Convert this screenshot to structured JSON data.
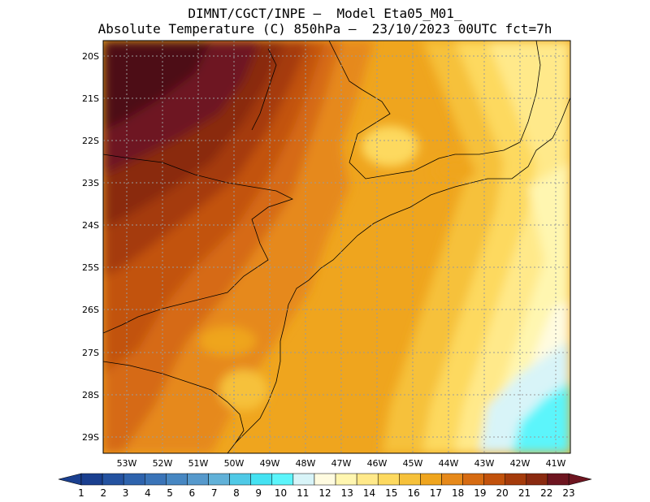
{
  "title": {
    "line1": "DIMNT/CGCT/INPE –  Model Eta05_M01_",
    "line2": "Absolute Temperature (C) 850hPa –  23/10/2023 00UTC fct=7h"
  },
  "map": {
    "lat_labels": [
      "20S",
      "21S",
      "22S",
      "23S",
      "24S",
      "25S",
      "26S",
      "27S",
      "28S",
      "29S"
    ],
    "lon_labels": [
      "53W",
      "52W",
      "51W",
      "50W",
      "49W",
      "48W",
      "47W",
      "46W",
      "45W",
      "44W",
      "43W",
      "42W",
      "41W"
    ],
    "grid_style": "dotted"
  },
  "colorbar": {
    "labels": [
      "1",
      "2",
      "3",
      "4",
      "5",
      "6",
      "7",
      "8",
      "9",
      "10",
      "11",
      "12",
      "13",
      "14",
      "15",
      "16",
      "17",
      "18",
      "19",
      "20",
      "21",
      "22",
      "23"
    ],
    "colors": [
      "#1a3f8f",
      "#2452a0",
      "#2e63ad",
      "#3a74b8",
      "#4787c2",
      "#5699cc",
      "#61b1d8",
      "#4fc9e6",
      "#44e2f2",
      "#5cf5fb",
      "#d8f4f8",
      "#fffbe0",
      "#fff6b0",
      "#ffe98a",
      "#fdd95f",
      "#f6c13a",
      "#efa51e",
      "#e6891a",
      "#d66b12",
      "#c2520c",
      "#a53b0b",
      "#8a2a10",
      "#6e1520"
    ]
  }
}
